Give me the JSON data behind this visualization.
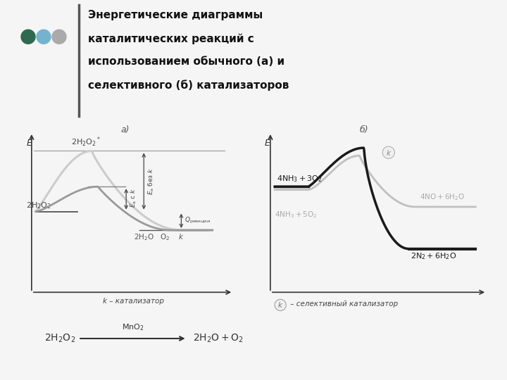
{
  "title": "Энергетические диаграммы\nкаталитических реакций с\nиспользованием обычного (а) и\nселективного (б) катализаторов",
  "subtitle_a": "а)",
  "subtitle_b": "б)",
  "bg_color": "#f5f5f5",
  "text_color": "#2a2a2a",
  "label_a_xlabel": "k – катализатор",
  "label_b_xlabel": " – селективный катализатор",
  "dot_colors": [
    "#2d6a4f",
    "#74b3ce",
    "#aaaaaa"
  ],
  "curve_color_light": "#c0c0c0",
  "curve_color_dark": "#555555",
  "line_color": "#888888",
  "arrow_color": "#333333"
}
